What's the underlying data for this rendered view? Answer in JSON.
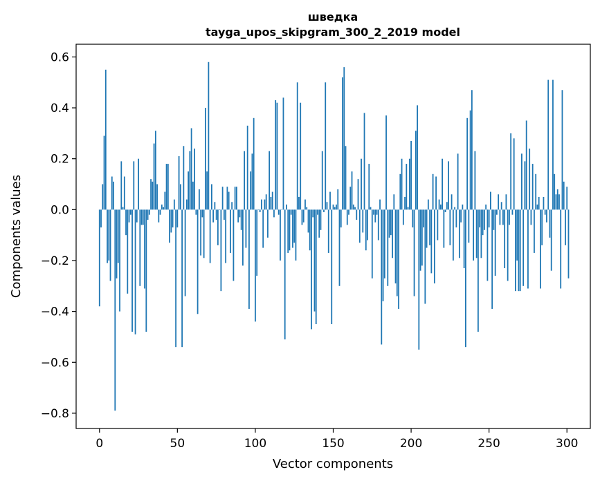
{
  "chart_data": {
    "type": "bar",
    "title_line1": "шведка",
    "title_line2": "tayga_upos_skipgram_300_2_2019 model",
    "xlabel": "Vector components",
    "ylabel": "Components values",
    "xlim": [
      -15,
      315
    ],
    "ylim": [
      -0.86,
      0.65
    ],
    "xticks": [
      0,
      50,
      100,
      150,
      200,
      250,
      300
    ],
    "xtick_labels": [
      "0",
      "50",
      "100",
      "150",
      "200",
      "250",
      "300"
    ],
    "yticks": [
      0.6,
      0.4,
      0.2,
      0.0,
      -0.2,
      -0.4,
      -0.6,
      -0.8
    ],
    "ytick_labels": [
      "0.6",
      "0.4",
      "0.2",
      "0.0",
      "−0.2",
      "−0.4",
      "−0.6",
      "−0.8"
    ],
    "bar_color": "#1f77b4",
    "values": [
      -0.38,
      -0.07,
      0.1,
      0.29,
      0.55,
      -0.21,
      -0.2,
      -0.28,
      0.13,
      0.11,
      -0.79,
      -0.27,
      -0.21,
      -0.4,
      0.19,
      0.01,
      0.13,
      -0.1,
      -0.33,
      -0.05,
      -0.02,
      -0.48,
      0.19,
      -0.49,
      -0.05,
      0.2,
      -0.3,
      -0.06,
      -0.06,
      -0.31,
      -0.48,
      -0.04,
      -0.02,
      0.12,
      0.11,
      0.26,
      0.31,
      0.1,
      -0.05,
      -0.02,
      0.02,
      0.01,
      0.07,
      0.18,
      0.18,
      -0.13,
      -0.09,
      -0.07,
      0.04,
      -0.54,
      -0.07,
      0.21,
      0.1,
      -0.54,
      0.25,
      -0.34,
      0.04,
      0.15,
      0.23,
      0.32,
      0.11,
      0.24,
      -0.02,
      -0.41,
      0.08,
      -0.18,
      -0.03,
      -0.19,
      0.4,
      0.15,
      0.58,
      -0.21,
      0.1,
      -0.05,
      0.03,
      -0.04,
      -0.14,
      0.0,
      -0.32,
      0.09,
      -0.04,
      -0.21,
      0.09,
      0.07,
      -0.17,
      0.03,
      -0.28,
      0.09,
      0.09,
      -0.05,
      -0.03,
      -0.08,
      -0.22,
      0.23,
      -0.15,
      0.33,
      -0.39,
      0.15,
      0.22,
      0.36,
      -0.44,
      -0.26,
      0.0,
      -0.01,
      0.04,
      -0.15,
      0.04,
      0.06,
      -0.11,
      0.23,
      0.05,
      0.07,
      -0.03,
      0.43,
      0.42,
      -0.02,
      -0.2,
      -0.0,
      0.44,
      -0.51,
      0.02,
      -0.17,
      -0.16,
      -0.02,
      -0.15,
      -0.13,
      -0.2,
      0.5,
      0.05,
      0.42,
      -0.06,
      -0.05,
      0.04,
      0.01,
      -0.09,
      -0.16,
      -0.47,
      -0.03,
      -0.4,
      -0.45,
      -0.02,
      -0.11,
      -0.08,
      0.23,
      -0.01,
      0.5,
      0.03,
      -0.17,
      0.07,
      -0.45,
      0.02,
      0.01,
      0.02,
      0.08,
      -0.3,
      -0.07,
      0.52,
      0.56,
      0.25,
      -0.06,
      -0.02,
      0.09,
      0.15,
      0.02,
      0.01,
      -0.04,
      0.12,
      -0.13,
      0.2,
      -0.09,
      0.38,
      -0.16,
      -0.12,
      0.18,
      0.01,
      -0.27,
      -0.02,
      -0.05,
      -0.02,
      -0.12,
      0.04,
      -0.53,
      -0.36,
      -0.27,
      0.37,
      -0.3,
      -0.11,
      -0.1,
      -0.19,
      0.06,
      -0.29,
      -0.34,
      -0.39,
      0.14,
      0.2,
      -0.06,
      0.05,
      0.18,
      0.01,
      0.2,
      0.27,
      -0.07,
      -0.34,
      0.31,
      0.41,
      -0.55,
      -0.24,
      -0.22,
      -0.07,
      -0.37,
      -0.15,
      0.04,
      -0.14,
      -0.25,
      0.14,
      -0.29,
      0.13,
      -0.12,
      0.04,
      0.02,
      0.2,
      -0.15,
      -0.01,
      0.03,
      0.19,
      -0.14,
      0.06,
      -0.2,
      0.01,
      -0.07,
      0.22,
      -0.19,
      -0.05,
      0.02,
      -0.23,
      -0.54,
      0.36,
      -0.13,
      0.39,
      0.47,
      -0.2,
      0.23,
      -0.19,
      -0.48,
      -0.07,
      -0.19,
      -0.1,
      -0.08,
      0.02,
      -0.28,
      -0.07,
      0.07,
      -0.39,
      -0.08,
      -0.26,
      -0.02,
      0.06,
      -0.06,
      0.03,
      -0.06,
      -0.23,
      0.06,
      -0.28,
      -0.06,
      0.3,
      -0.02,
      0.28,
      -0.32,
      -0.2,
      -0.32,
      -0.32,
      0.22,
      -0.3,
      0.19,
      0.35,
      -0.31,
      0.24,
      -0.06,
      0.18,
      -0.17,
      0.14,
      0.02,
      0.05,
      -0.31,
      -0.14,
      0.05,
      -0.02,
      -0.05,
      0.51,
      -0.11,
      -0.24,
      0.51,
      0.14,
      0.06,
      0.08,
      0.06,
      -0.31,
      0.47,
      0.11,
      -0.14,
      0.09,
      -0.27
    ]
  }
}
